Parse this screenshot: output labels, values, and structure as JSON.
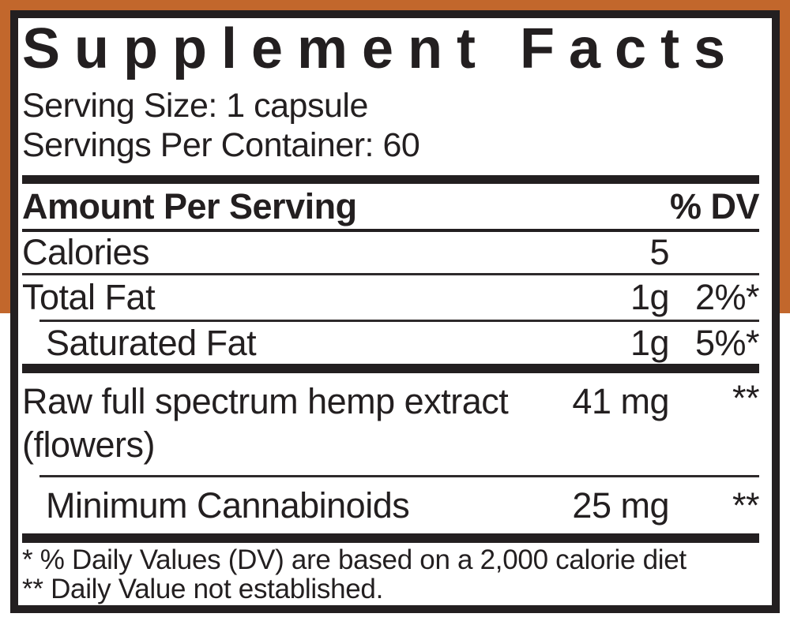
{
  "colors": {
    "background_orange": "#c2672c",
    "ink": "#231f20",
    "label_bg": "#ffffff"
  },
  "label": {
    "title": "Supplement Facts",
    "serving_size": "Serving Size: 1 capsule",
    "servings_per_container": "Servings Per Container: 60",
    "header": {
      "amount_per_serving": "Amount Per Serving",
      "dv": "% DV"
    },
    "rows": [
      {
        "name": "Calories",
        "amount": "5",
        "dv": ""
      },
      {
        "name": "Total Fat",
        "amount": "1g",
        "dv": "2%*"
      },
      {
        "name": "Saturated Fat",
        "amount": "1g",
        "dv": "5%*"
      },
      {
        "name": "Raw full spectrum hemp extract (flowers)",
        "amount": "41 mg",
        "dv": "**"
      },
      {
        "name": "Minimum Cannabinoids",
        "amount": "25 mg",
        "dv": "**"
      }
    ],
    "footnotes": [
      "* % Daily Values (DV) are based on a 2,000 calorie diet",
      "** Daily Value not established."
    ]
  }
}
